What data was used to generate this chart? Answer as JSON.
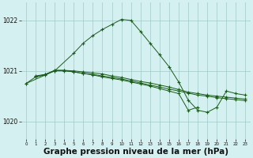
{
  "bg_color": "#d4f0f0",
  "grid_color": "#aacece",
  "line_color": "#1a5c1a",
  "xlabel": "Graphe pression niveau de la mer (hPa)",
  "xlabel_fontsize": 7.5,
  "xlim": [
    -0.5,
    23.5
  ],
  "ylim": [
    1019.65,
    1022.35
  ],
  "yticks": [
    1020,
    1021,
    1022
  ],
  "xticks": [
    0,
    1,
    2,
    3,
    4,
    5,
    6,
    7,
    8,
    9,
    10,
    11,
    12,
    13,
    14,
    15,
    16,
    17,
    18,
    19,
    20,
    21,
    22,
    23
  ],
  "line_peak_x": [
    0,
    3,
    5,
    6,
    7,
    8,
    9,
    10,
    11,
    12,
    13,
    14,
    15,
    16,
    17,
    18,
    19,
    20,
    21,
    22,
    23
  ],
  "line_peak_y": [
    1020.75,
    1021.0,
    1021.35,
    1021.55,
    1021.7,
    1021.82,
    1021.92,
    1022.02,
    1022.0,
    1021.78,
    1021.55,
    1021.32,
    1021.08,
    1020.78,
    1020.42,
    1020.22,
    1020.18,
    1020.28,
    1020.6,
    1020.55,
    1020.52
  ],
  "line_flat1_x": [
    0,
    1,
    2,
    3,
    4,
    5,
    6,
    7,
    8,
    9,
    10,
    11,
    12,
    13,
    14,
    15,
    16,
    17,
    18,
    19,
    20,
    21,
    22,
    23
  ],
  "line_flat1_y": [
    1020.75,
    1020.88,
    1020.92,
    1021.01,
    1021.01,
    1021.0,
    1020.98,
    1020.96,
    1020.94,
    1020.9,
    1020.87,
    1020.83,
    1020.79,
    1020.76,
    1020.72,
    1020.68,
    1020.63,
    1020.58,
    1020.55,
    1020.52,
    1020.5,
    1020.48,
    1020.46,
    1020.44
  ],
  "line_flat2_x": [
    1,
    2,
    3,
    4,
    5,
    6,
    7,
    8,
    9,
    10,
    11,
    12,
    13,
    14,
    15,
    16,
    17,
    18,
    19,
    20,
    21,
    22,
    23
  ],
  "line_flat2_y": [
    1020.9,
    1020.93,
    1021.0,
    1021.0,
    1020.98,
    1020.95,
    1020.93,
    1020.9,
    1020.87,
    1020.84,
    1020.8,
    1020.76,
    1020.72,
    1020.68,
    1020.64,
    1020.6,
    1020.56,
    1020.52,
    1020.5,
    1020.47,
    1020.45,
    1020.43,
    1020.41
  ],
  "line_dip_x": [
    1,
    2,
    3,
    4,
    5,
    6,
    7,
    8,
    9,
    10,
    11,
    12,
    13,
    14,
    15,
    16,
    17,
    18
  ],
  "line_dip_y": [
    1020.88,
    1020.93,
    1021.01,
    1021.01,
    1020.98,
    1020.95,
    1020.92,
    1020.88,
    1020.85,
    1020.82,
    1020.78,
    1020.74,
    1020.7,
    1020.65,
    1020.6,
    1020.55,
    1020.22,
    1020.28
  ]
}
